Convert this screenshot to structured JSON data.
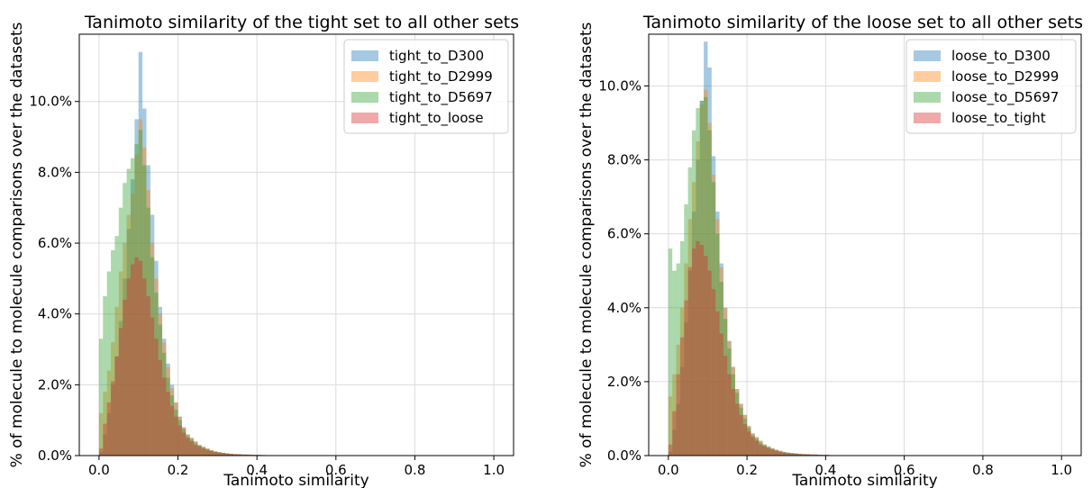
{
  "chart_data": [
    {
      "type": "bar",
      "histogram": true,
      "title": "Tanimoto similarity of the tight set to all other sets",
      "xlabel": "Tanimoto similarity",
      "ylabel": "% of molecule to molecule comparisons over the datasets",
      "xlim": [
        -0.05,
        1.05
      ],
      "ylim": [
        0,
        0.119
      ],
      "xticks": [
        0.0,
        0.2,
        0.4,
        0.6,
        0.8,
        1.0
      ],
      "xtick_labels": [
        "0.0",
        "0.2",
        "0.4",
        "0.6",
        "0.8",
        "1.0"
      ],
      "yticks": [
        0.0,
        0.02,
        0.04,
        0.06,
        0.08,
        0.1
      ],
      "ytick_labels": [
        "0.0%",
        "2.0%",
        "4.0%",
        "6.0%",
        "8.0%",
        "10.0%"
      ],
      "grid": true,
      "legend_position": "top-right",
      "bin_width": 0.01,
      "series": [
        {
          "name": "tight_to_D300",
          "color": "#1f77b4",
          "start": 0.0,
          "values": [
            0.001,
            0.006,
            0.012,
            0.02,
            0.028,
            0.038,
            0.05,
            0.064,
            0.078,
            0.095,
            0.114,
            0.098,
            0.082,
            0.068,
            0.055,
            0.042,
            0.033,
            0.026,
            0.02,
            0.015,
            0.011,
            0.008,
            0.006,
            0.005,
            0.004,
            0.003,
            0.0025,
            0.002,
            0.0015,
            0.0012,
            0.001,
            0.0008,
            0.0006,
            0.0005,
            0.0004,
            0.0004,
            0.0003,
            0.0003,
            0.0002,
            0.0002,
            0.0002,
            0.0001,
            0.0001,
            0.0001,
            0.0001,
            0.0001,
            0.0001,
            0.0001,
            0.0001,
            0.0001
          ]
        },
        {
          "name": "tight_to_D2999",
          "color": "#ff7f0e",
          "start": 0.0,
          "values": [
            0.012,
            0.018,
            0.024,
            0.032,
            0.042,
            0.052,
            0.06,
            0.068,
            0.074,
            0.085,
            0.095,
            0.087,
            0.075,
            0.06,
            0.05,
            0.04,
            0.032,
            0.025,
            0.019,
            0.015,
            0.011,
            0.008,
            0.006,
            0.005,
            0.004,
            0.003,
            0.0025,
            0.002,
            0.0015,
            0.0012,
            0.001,
            0.0008,
            0.0006,
            0.0005,
            0.0004,
            0.0004,
            0.0003,
            0.0003,
            0.0002,
            0.0002,
            0.0002,
            0.0001,
            0.0001,
            0.0001,
            0.0001,
            0.0001,
            0.0001,
            0.0001,
            0.0001,
            0.0001
          ]
        },
        {
          "name": "tight_to_D5697",
          "color": "#2ca02c",
          "start": 0.0,
          "values": [
            0.033,
            0.045,
            0.052,
            0.058,
            0.062,
            0.07,
            0.077,
            0.081,
            0.084,
            0.088,
            0.092,
            0.082,
            0.07,
            0.056,
            0.046,
            0.037,
            0.029,
            0.022,
            0.017,
            0.013,
            0.01,
            0.0075,
            0.0055,
            0.0045,
            0.0035,
            0.0028,
            0.0022,
            0.0018,
            0.0014,
            0.0011,
            0.0009,
            0.0007,
            0.0006,
            0.0005,
            0.0004,
            0.0003,
            0.0003,
            0.0002,
            0.0002,
            0.0002,
            0.0001,
            0.0001,
            0.0001,
            0.0001,
            0.0001,
            0.0001,
            0.0001,
            0.0001,
            0.0001,
            0.0001
          ]
        },
        {
          "name": "tight_to_loose",
          "color": "#d62728",
          "start": 0.0,
          "values": [
            0.002,
            0.009,
            0.015,
            0.021,
            0.028,
            0.036,
            0.044,
            0.05,
            0.054,
            0.056,
            0.055,
            0.05,
            0.045,
            0.039,
            0.033,
            0.027,
            0.022,
            0.018,
            0.014,
            0.011,
            0.0085,
            0.0065,
            0.005,
            0.004,
            0.003,
            0.0025,
            0.002,
            0.0016,
            0.0013,
            0.001,
            0.0008,
            0.0007,
            0.0006,
            0.0005,
            0.0004,
            0.0004,
            0.0003,
            0.0003,
            0.0003,
            0.0002,
            0.0002,
            0.0002,
            0.0001,
            0.0001,
            0.0001,
            0.0001,
            0.0001,
            0.0001,
            0.0001,
            0.0001
          ]
        }
      ]
    },
    {
      "type": "bar",
      "histogram": true,
      "title": "Tanimoto similarity of the loose set to all other sets",
      "xlabel": "Tanimoto similarity",
      "ylabel": "% of molecule to molecule comparisons over the datasets",
      "xlim": [
        -0.05,
        1.05
      ],
      "ylim": [
        0,
        0.114
      ],
      "xticks": [
        0.0,
        0.2,
        0.4,
        0.6,
        0.8,
        1.0
      ],
      "xtick_labels": [
        "0.0",
        "0.2",
        "0.4",
        "0.6",
        "0.8",
        "1.0"
      ],
      "yticks": [
        0.0,
        0.02,
        0.04,
        0.06,
        0.08,
        0.1
      ],
      "ytick_labels": [
        "0.0%",
        "2.0%",
        "4.0%",
        "6.0%",
        "8.0%",
        "10.0%"
      ],
      "grid": true,
      "legend_position": "top-right",
      "bin_width": 0.01,
      "series": [
        {
          "name": "loose_to_D300",
          "color": "#1f77b4",
          "start": 0.0,
          "values": [
            0.001,
            0.007,
            0.014,
            0.024,
            0.036,
            0.05,
            0.066,
            0.08,
            0.096,
            0.112,
            0.105,
            0.081,
            0.066,
            0.052,
            0.04,
            0.031,
            0.024,
            0.018,
            0.014,
            0.011,
            0.008,
            0.006,
            0.005,
            0.004,
            0.003,
            0.0025,
            0.002,
            0.0016,
            0.0013,
            0.001,
            0.0008,
            0.0007,
            0.0006,
            0.0005,
            0.0004,
            0.0004,
            0.0003,
            0.0003,
            0.0002,
            0.0002,
            0.0002,
            0.0001,
            0.0001,
            0.0001,
            0.0001,
            0.0001,
            0.0001,
            0.0001,
            0.0001,
            0.0001
          ]
        },
        {
          "name": "loose_to_D2999",
          "color": "#ff7f0e",
          "start": 0.0,
          "values": [
            0.016,
            0.022,
            0.03,
            0.04,
            0.052,
            0.064,
            0.074,
            0.085,
            0.095,
            0.099,
            0.09,
            0.076,
            0.064,
            0.051,
            0.04,
            0.031,
            0.024,
            0.018,
            0.014,
            0.011,
            0.008,
            0.006,
            0.005,
            0.004,
            0.003,
            0.0025,
            0.002,
            0.0016,
            0.0013,
            0.001,
            0.0008,
            0.0007,
            0.0006,
            0.0005,
            0.0004,
            0.0004,
            0.0003,
            0.0003,
            0.0002,
            0.0002,
            0.0002,
            0.0001,
            0.0001,
            0.0001,
            0.0001,
            0.0001,
            0.0001,
            0.0001,
            0.0001,
            0.0001
          ]
        },
        {
          "name": "loose_to_D5697",
          "color": "#2ca02c",
          "start": 0.0,
          "values": [
            0.056,
            0.05,
            0.052,
            0.058,
            0.068,
            0.078,
            0.088,
            0.094,
            0.096,
            0.097,
            0.088,
            0.074,
            0.06,
            0.047,
            0.037,
            0.029,
            0.022,
            0.017,
            0.013,
            0.01,
            0.0075,
            0.0055,
            0.0045,
            0.0035,
            0.0028,
            0.0022,
            0.0018,
            0.0014,
            0.0011,
            0.0009,
            0.0007,
            0.0006,
            0.0005,
            0.0004,
            0.0003,
            0.0003,
            0.0002,
            0.0002,
            0.0002,
            0.0001,
            0.0001,
            0.0001,
            0.0001,
            0.0001,
            0.0001,
            0.0001,
            0.0001,
            0.0001,
            0.0001,
            0.0001
          ]
        },
        {
          "name": "loose_to_tight",
          "color": "#d62728",
          "start": 0.0,
          "values": [
            0.003,
            0.012,
            0.022,
            0.032,
            0.042,
            0.051,
            0.056,
            0.058,
            0.057,
            0.054,
            0.05,
            0.045,
            0.039,
            0.033,
            0.027,
            0.022,
            0.018,
            0.014,
            0.011,
            0.0085,
            0.0065,
            0.005,
            0.004,
            0.003,
            0.0025,
            0.002,
            0.0016,
            0.0013,
            0.001,
            0.0008,
            0.0007,
            0.0006,
            0.0005,
            0.0004,
            0.0004,
            0.0003,
            0.0003,
            0.0003,
            0.0002,
            0.0002,
            0.0002,
            0.0001,
            0.0001,
            0.0001,
            0.0001,
            0.0001,
            0.0001,
            0.0001,
            0.0001,
            0.0001
          ]
        }
      ]
    }
  ]
}
